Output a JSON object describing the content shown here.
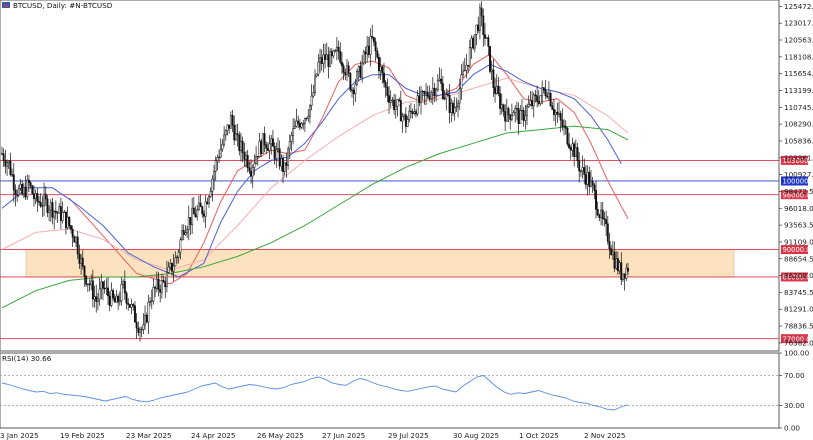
{
  "header": {
    "title": "BTCUSD, Daily:  #N-BTCUSD",
    "rsi_label": "RSI(14) 30.66"
  },
  "colors": {
    "candle": "#111111",
    "ma_fast": "#e85d5d",
    "ma_slow_pink": "#f4b0b0",
    "ma_blue": "#4a5fd8",
    "ma_green": "#3aa53a",
    "level_line": "#d9364a",
    "level_blue": "#2a3fc8",
    "zone_fill": "#fde2bf",
    "rsi_line": "#5b8fe0",
    "tag_red": "#d9364a",
    "tag_blue": "#1f33c8"
  },
  "chart_data": [
    {
      "type": "candlestick",
      "title": "BTCUSD, Daily:  #N-BTCUSD",
      "x_ticks": [
        "3 Jan 2025",
        "19 Feb 2025",
        "23 Mar 2025",
        "24 Apr 2025",
        "26 May 2025",
        "27 Jun 2025",
        "29 Jul 2025",
        "30 Aug 2025",
        "1 Oct 2025",
        "2 Nov 2025"
      ],
      "y_ticks": [
        125472.0,
        123017.5,
        120563.0,
        118108.5,
        115654.0,
        113199.5,
        110745.0,
        108290.5,
        105836.0,
        103381.5,
        100927.0,
        98472.5,
        96018.0,
        93563.5,
        91109.0,
        88654.5,
        86200.0,
        83745.5,
        81291.0,
        78836.5,
        76382.0
      ],
      "ylim": [
        75200,
        126400
      ],
      "levels": [
        {
          "label": "103000.0",
          "value": 103000,
          "color": "red"
        },
        {
          "label": "100000.0",
          "value": 100000,
          "color": "blue"
        },
        {
          "label": "98000.0",
          "value": 98000,
          "color": "red"
        },
        {
          "label": "90000.0",
          "value": 90000,
          "color": "red"
        },
        {
          "label": "86000.0",
          "value": 86000,
          "color": "red"
        },
        {
          "label": "77000.0",
          "value": 77000,
          "color": "red"
        }
      ],
      "zone": {
        "from": 86000,
        "to": 90000
      },
      "close_path": [
        [
          0,
          104000
        ],
        [
          4,
          102500
        ],
        [
          8,
          99000
        ],
        [
          12,
          98000
        ],
        [
          16,
          99500
        ],
        [
          20,
          97000
        ],
        [
          24,
          97000
        ],
        [
          28,
          96500
        ],
        [
          32,
          95500
        ],
        [
          36,
          95000
        ],
        [
          40,
          93500
        ],
        [
          44,
          91500
        ],
        [
          48,
          87000
        ],
        [
          52,
          85000
        ],
        [
          56,
          82500
        ],
        [
          60,
          84500
        ],
        [
          64,
          83000
        ],
        [
          68,
          82000
        ],
        [
          72,
          84500
        ],
        [
          76,
          82000
        ],
        [
          80,
          79500
        ],
        [
          84,
          78000
        ],
        [
          88,
          83000
        ],
        [
          92,
          84500
        ],
        [
          96,
          85000
        ],
        [
          100,
          87000
        ],
        [
          104,
          89000
        ],
        [
          108,
          93500
        ],
        [
          112,
          94500
        ],
        [
          116,
          95500
        ],
        [
          120,
          96000
        ],
        [
          124,
          99500
        ],
        [
          128,
          103500
        ],
        [
          132,
          106000
        ],
        [
          136,
          109000
        ],
        [
          140,
          105500
        ],
        [
          144,
          104000
        ],
        [
          148,
          102000
        ],
        [
          152,
          104500
        ],
        [
          156,
          106000
        ],
        [
          160,
          105000
        ],
        [
          164,
          103500
        ],
        [
          168,
          101500
        ],
        [
          172,
          106500
        ],
        [
          176,
          108500
        ],
        [
          180,
          109500
        ],
        [
          184,
          111500
        ],
        [
          188,
          117000
        ],
        [
          192,
          118000
        ],
        [
          196,
          117500
        ],
        [
          200,
          119000
        ],
        [
          204,
          116500
        ],
        [
          208,
          113500
        ],
        [
          212,
          115500
        ],
        [
          216,
          118500
        ],
        [
          220,
          120500
        ],
        [
          224,
          117000
        ],
        [
          228,
          113500
        ],
        [
          232,
          111500
        ],
        [
          236,
          110500
        ],
        [
          240,
          108500
        ],
        [
          244,
          110500
        ],
        [
          248,
          111500
        ],
        [
          252,
          112500
        ],
        [
          256,
          113500
        ],
        [
          260,
          114500
        ],
        [
          264,
          112000
        ],
        [
          268,
          110000
        ],
        [
          272,
          113500
        ],
        [
          276,
          117000
        ],
        [
          280,
          120500
        ],
        [
          284,
          124000
        ],
        [
          288,
          120000
        ],
        [
          292,
          114000
        ],
        [
          296,
          111500
        ],
        [
          300,
          109500
        ],
        [
          304,
          110500
        ],
        [
          308,
          109000
        ],
        [
          312,
          110500
        ],
        [
          316,
          111500
        ],
        [
          320,
          112500
        ],
        [
          324,
          113500
        ],
        [
          328,
          110500
        ],
        [
          332,
          108500
        ],
        [
          336,
          106500
        ],
        [
          340,
          104500
        ],
        [
          344,
          101500
        ],
        [
          348,
          100500
        ],
        [
          352,
          98000
        ],
        [
          356,
          94500
        ],
        [
          360,
          92000
        ],
        [
          364,
          88500
        ],
        [
          368,
          86500
        ],
        [
          372,
          87500
        ]
      ],
      "series": [
        {
          "values_note": "",
          "name": "",
          "kind": "ma_fast",
          "points": [
            [
              40,
              97500
            ],
            [
              60,
              92000
            ],
            [
              80,
              86500
            ],
            [
              100,
              85000
            ],
            [
              110,
              86500
            ],
            [
              120,
              91000
            ],
            [
              130,
              97000
            ],
            [
              140,
              101500
            ],
            [
              150,
              103000
            ],
            [
              160,
              104500
            ],
            [
              170,
              104000
            ],
            [
              180,
              104500
            ],
            [
              190,
              109000
            ],
            [
              200,
              114500
            ],
            [
              210,
              117000
            ],
            [
              220,
              117500
            ],
            [
              230,
              116500
            ],
            [
              240,
              112500
            ],
            [
              250,
              111500
            ],
            [
              260,
              112500
            ],
            [
              270,
              113500
            ],
            [
              280,
              117000
            ],
            [
              290,
              118500
            ],
            [
              300,
              115500
            ],
            [
              310,
              112000
            ],
            [
              320,
              111500
            ],
            [
              330,
              112000
            ],
            [
              340,
              110000
            ],
            [
              350,
              105500
            ],
            [
              360,
              100000
            ],
            [
              372,
              94500
            ]
          ]
        },
        {
          "name": "",
          "kind": "ma_slow_pink",
          "points": [
            [
              0,
              90000
            ],
            [
              20,
              92500
            ],
            [
              40,
              93000
            ],
            [
              60,
              91500
            ],
            [
              80,
              88500
            ],
            [
              100,
              87000
            ],
            [
              120,
              88500
            ],
            [
              140,
              93500
            ],
            [
              160,
              99000
            ],
            [
              180,
              103000
            ],
            [
              200,
              106500
            ],
            [
              220,
              109500
            ],
            [
              240,
              111500
            ],
            [
              260,
              112000
            ],
            [
              280,
              113500
            ],
            [
              300,
              115000
            ],
            [
              320,
              113500
            ],
            [
              340,
              112500
            ],
            [
              360,
              109500
            ],
            [
              372,
              107000
            ]
          ]
        },
        {
          "name": "",
          "kind": "ma_blue",
          "points": [
            [
              0,
              96000
            ],
            [
              15,
              99000
            ],
            [
              30,
              99000
            ],
            [
              45,
              96500
            ],
            [
              60,
              93500
            ],
            [
              75,
              89500
            ],
            [
              90,
              87500
            ],
            [
              105,
              86000
            ],
            [
              120,
              88000
            ],
            [
              130,
              94000
            ],
            [
              140,
              98500
            ],
            [
              150,
              101500
            ],
            [
              160,
              103000
            ],
            [
              170,
              103500
            ],
            [
              180,
              105500
            ],
            [
              190,
              108500
            ],
            [
              200,
              112000
            ],
            [
              210,
              114500
            ],
            [
              220,
              115500
            ],
            [
              230,
              115500
            ],
            [
              240,
              113500
            ],
            [
              250,
              112500
            ],
            [
              260,
              112500
            ],
            [
              270,
              113000
            ],
            [
              280,
              115500
            ],
            [
              290,
              117000
            ],
            [
              300,
              116000
            ],
            [
              310,
              114500
            ],
            [
              320,
              113500
            ],
            [
              330,
              113000
            ],
            [
              340,
              112000
            ],
            [
              350,
              109500
            ],
            [
              360,
              106000
            ],
            [
              368,
              102500
            ]
          ]
        },
        {
          "name": "",
          "kind": "ma_green",
          "points": [
            [
              0,
              81500
            ],
            [
              20,
              84000
            ],
            [
              40,
              85500
            ],
            [
              60,
              86000
            ],
            [
              80,
              86000
            ],
            [
              100,
              86500
            ],
            [
              120,
              87500
            ],
            [
              140,
              89000
            ],
            [
              160,
              91000
            ],
            [
              180,
              93500
            ],
            [
              200,
              96500
            ],
            [
              220,
              99500
            ],
            [
              240,
              102000
            ],
            [
              260,
              104000
            ],
            [
              280,
              105500
            ],
            [
              300,
              107000
            ],
            [
              320,
              107500
            ],
            [
              340,
              108000
            ],
            [
              360,
              107500
            ],
            [
              372,
              106000
            ]
          ]
        }
      ]
    },
    {
      "type": "line",
      "title": "RSI(14) 30.66",
      "y_ticks": [
        100.0,
        70.0,
        30.0,
        0.0
      ],
      "ylim": [
        0,
        100
      ],
      "grid_levels": [
        70,
        30
      ],
      "series": [
        {
          "name": "",
          "values": [
            60,
            58,
            55,
            52,
            50,
            48,
            49,
            46,
            47,
            45,
            44,
            43,
            42,
            40,
            38,
            36,
            38,
            40,
            42,
            38,
            36,
            35,
            37,
            40,
            42,
            44,
            46,
            48,
            52,
            56,
            58,
            60,
            55,
            52,
            54,
            56,
            58,
            57,
            55,
            53,
            52,
            54,
            58,
            60,
            62,
            66,
            68,
            65,
            60,
            58,
            57,
            62,
            66,
            64,
            60,
            57,
            55,
            52,
            50,
            49,
            51,
            53,
            55,
            56,
            52,
            50,
            48,
            56,
            62,
            68,
            70,
            62,
            54,
            48,
            45,
            47,
            46,
            48,
            50,
            47,
            44,
            42,
            40,
            36,
            34,
            33,
            30,
            28,
            25,
            24,
            28,
            31
          ]
        }
      ]
    }
  ]
}
